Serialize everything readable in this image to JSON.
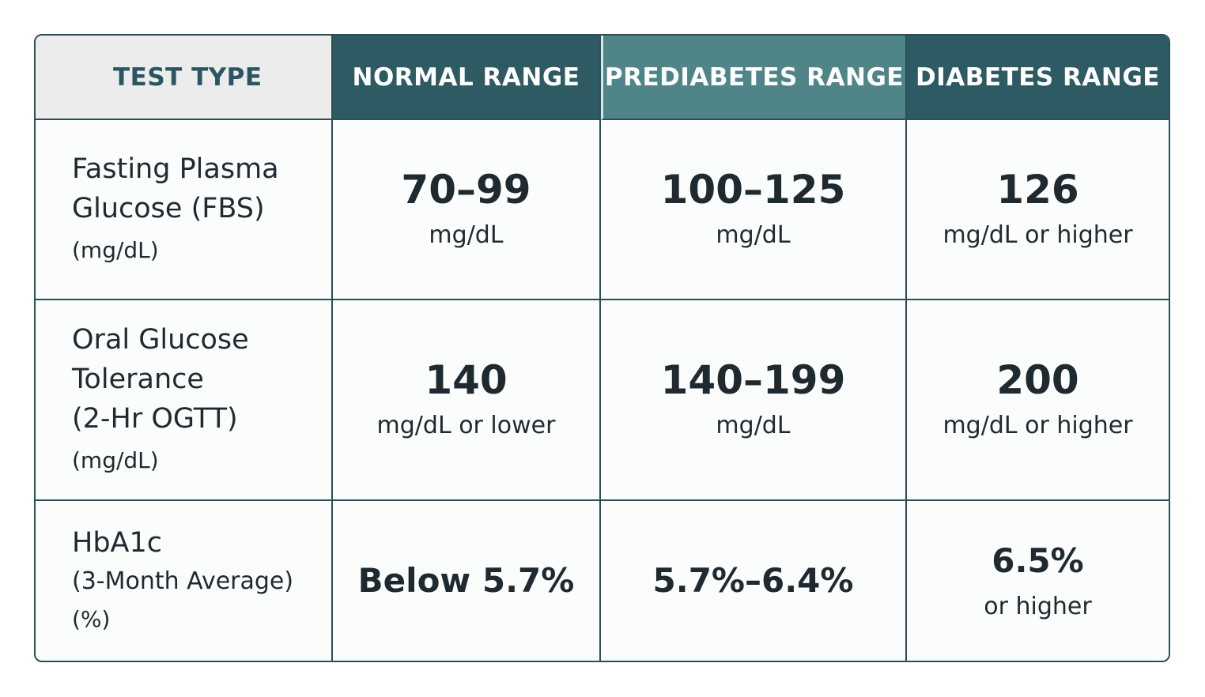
{
  "headers": {
    "test_type": "TEST TYPE",
    "normal": "NORMAL RANGE",
    "prediabetes": "PREDIABETES RANGE",
    "diabetes": "DIABETES RANGE"
  },
  "rows": [
    {
      "test_name": "Fasting Plasma\nGlucose (FBS)",
      "test_unit": "(mg/dL)",
      "normal": {
        "value": "70–99",
        "unit": "mg/dL"
      },
      "prediabetes": {
        "value": "100–125",
        "unit": "mg/dL"
      },
      "diabetes": {
        "value": "126",
        "unit": "mg/dL or higher"
      }
    },
    {
      "test_name": "Oral Glucose\nTolerance\n(2-Hr OGTT)",
      "test_unit": "(mg/dL)",
      "normal": {
        "value": "140",
        "unit": "mg/dL or lower"
      },
      "prediabetes": {
        "value": "140–199",
        "unit": "mg/dL"
      },
      "diabetes": {
        "value": "200",
        "unit": "mg/dL or higher"
      }
    },
    {
      "test_name": "HbA1c",
      "test_unit_line": "(3-Month Average)",
      "test_unit": "(%)",
      "normal": {
        "value": "Below 5.7%"
      },
      "prediabetes": {
        "value": "5.7%–6.4%"
      },
      "diabetes": {
        "value": "6.5%",
        "unit": "or higher"
      }
    }
  ],
  "colors": {
    "header_dark": "#2d5a63",
    "header_mid": "#4f8588",
    "header_light": "#ececec",
    "border": "#2b4f58"
  }
}
